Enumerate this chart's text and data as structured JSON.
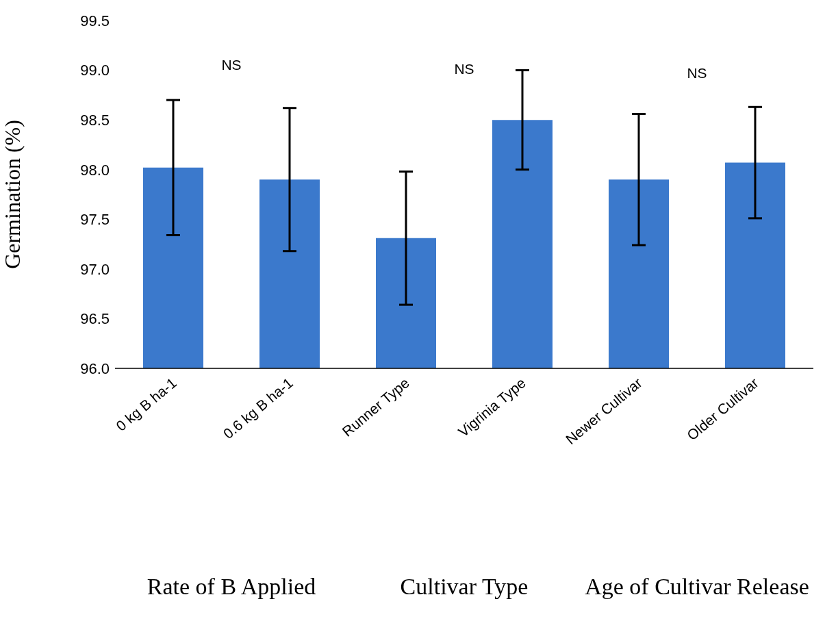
{
  "chart_data": {
    "type": "bar",
    "ylabel": "Germination (%)",
    "categories": [
      "0 kg B ha-1",
      "0.6 kg B ha-1",
      "Runner Type",
      "Vigrinia Type",
      "Newer Cultivar",
      "Older Cultivar"
    ],
    "values": [
      98.02,
      97.9,
      97.31,
      98.5,
      97.9,
      98.07
    ],
    "errors": [
      0.68,
      0.72,
      0.67,
      0.5,
      0.66,
      0.56
    ],
    "color": "#3b79cc",
    "ylim": [
      96.0,
      99.5
    ],
    "yticks": [
      {
        "value": 96.0,
        "label": "96.0"
      },
      {
        "value": 96.5,
        "label": "96.5"
      },
      {
        "value": 97.0,
        "label": "97.0"
      },
      {
        "value": 97.5,
        "label": "97.5"
      },
      {
        "value": 98.0,
        "label": "98.0"
      },
      {
        "value": 98.5,
        "label": "98.5"
      },
      {
        "value": 99.0,
        "label": "99.0"
      },
      {
        "value": 99.5,
        "label": "99.5"
      }
    ],
    "grid": false,
    "annotations": [
      "NS",
      "NS",
      "NS",
      "Rate of B Applied",
      "Cultivar Type",
      "Age of Cultivar Release"
    ]
  }
}
